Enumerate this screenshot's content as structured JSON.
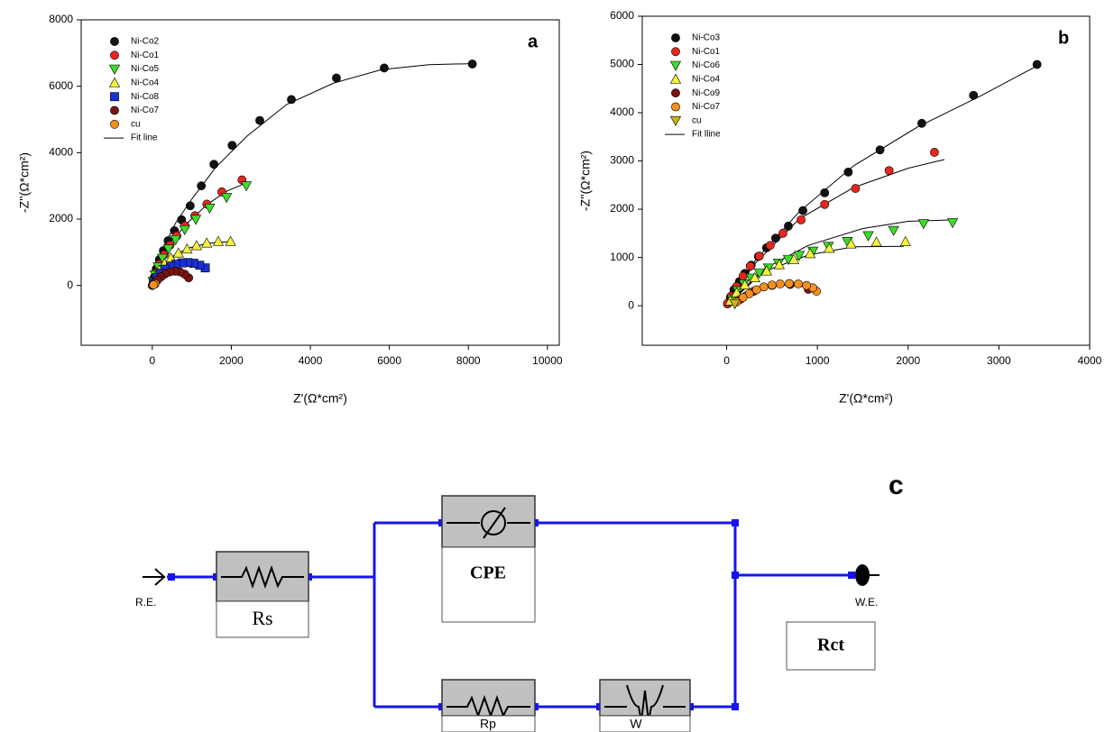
{
  "chart_data": [
    {
      "type": "scatter",
      "label": "a",
      "x_label": "Z'(Ω*cm²)",
      "y_label": "-Z''(Ω*cm²)",
      "xlim": [
        -1800,
        10300
      ],
      "ylim": [
        -1800,
        8000
      ],
      "xticks": [
        0,
        2000,
        4000,
        6000,
        8000,
        10000
      ],
      "yticks": [
        0,
        2000,
        4000,
        6000,
        8000
      ],
      "legend": "upper left",
      "series": [
        {
          "name": "Ni-Co2",
          "color": "#111111",
          "marker": "circle",
          "x": [
            8100,
            5870,
            4660,
            3520,
            2720,
            2020,
            1560,
            1240,
            960,
            740,
            560,
            400,
            280,
            180,
            100,
            50,
            20,
            0
          ],
          "values": [
            6670,
            6550,
            6250,
            5600,
            4970,
            4220,
            3650,
            3000,
            2400,
            1980,
            1650,
            1350,
            1050,
            780,
            500,
            250,
            80,
            0
          ]
        },
        {
          "name": "Ni-Co1",
          "color": "#e8261e",
          "marker": "circle",
          "x": [
            2270,
            1760,
            1380,
            1080,
            830,
            620,
            450,
            300,
            180,
            90,
            30
          ],
          "values": [
            3180,
            2820,
            2450,
            2100,
            1800,
            1500,
            1220,
            930,
            650,
            380,
            150
          ]
        },
        {
          "name": "Ni-Co5",
          "color": "#3ddc2a",
          "marker": "triangle-down",
          "x": [
            2380,
            1880,
            1450,
            1100,
            820,
            590,
            410,
            260,
            150,
            70,
            20
          ],
          "values": [
            3000,
            2650,
            2330,
            1990,
            1680,
            1380,
            1100,
            820,
            560,
            320,
            120
          ]
        },
        {
          "name": "Ni-Co4",
          "color": "#f4f23a",
          "marker": "triangle-up",
          "x": [
            1980,
            1670,
            1380,
            1120,
            880,
            660,
            470,
            310,
            180,
            80,
            20
          ],
          "values": [
            1330,
            1330,
            1280,
            1200,
            1100,
            980,
            830,
            660,
            460,
            260,
            90
          ]
        },
        {
          "name": "Ni-Co8",
          "color": "#1930d8",
          "marker": "square",
          "x": [
            1340,
            1200,
            1050,
            900,
            750,
            600,
            460,
            330,
            210,
            110,
            40
          ],
          "values": [
            530,
            610,
            670,
            690,
            680,
            640,
            580,
            490,
            370,
            230,
            90
          ]
        },
        {
          "name": "Ni-Co7",
          "color": "#7a1414",
          "marker": "circle",
          "x": [
            920,
            820,
            700,
            580,
            450,
            330,
            220,
            130,
            50
          ],
          "values": [
            230,
            340,
            410,
            430,
            410,
            350,
            260,
            160,
            60
          ]
        },
        {
          "name": "cu",
          "color": "#f4901e",
          "marker": "circle",
          "x": [
            70,
            30
          ],
          "values": [
            50,
            20
          ]
        },
        {
          "name": "Fit line",
          "color": "#000000",
          "marker": "line",
          "x": [
            0,
            100,
            300,
            600,
            1000,
            1600,
            2400,
            3400,
            4600,
            5800,
            7000,
            8100,
            null,
            0,
            200,
            500,
            900,
            1400,
            1900,
            2300,
            null,
            0,
            200,
            500,
            900,
            1400,
            2000
          ],
          "values": [
            0,
            600,
            1200,
            1900,
            2600,
            3550,
            4500,
            5450,
            6100,
            6500,
            6650,
            6680,
            null,
            0,
            700,
            1350,
            1900,
            2450,
            2850,
            3050,
            null,
            0,
            480,
            870,
            1120,
            1270,
            1330
          ]
        }
      ]
    },
    {
      "type": "scatter",
      "label": "b",
      "x_label": "Z'(Ω*cm²)",
      "y_label": "-Z''(Ω*cm²)",
      "xlim": [
        -930,
        4000
      ],
      "ylim": [
        -820,
        6000
      ],
      "xticks": [
        0,
        1000,
        2000,
        3000,
        4000
      ],
      "yticks": [
        0,
        1000,
        2000,
        3000,
        4000,
        5000,
        6000
      ],
      "legend": "upper left",
      "series": [
        {
          "name": "Ni-Co3",
          "color": "#111111",
          "marker": "circle",
          "x": [
            3420,
            2720,
            2150,
            1690,
            1340,
            1080,
            840,
            680,
            540,
            440,
            350,
            270,
            200,
            140,
            80,
            40,
            10
          ],
          "values": [
            5000,
            4360,
            3780,
            3230,
            2770,
            2340,
            1970,
            1650,
            1400,
            1200,
            1020,
            840,
            670,
            500,
            330,
            170,
            40
          ]
        },
        {
          "name": "Ni-Co1",
          "color": "#e8261e",
          "marker": "circle",
          "x": [
            2290,
            1790,
            1420,
            1080,
            820,
            620,
            480,
            360,
            260,
            180,
            110,
            50,
            10
          ],
          "values": [
            3180,
            2800,
            2430,
            2100,
            1780,
            1500,
            1250,
            1030,
            820,
            610,
            400,
            200,
            50
          ]
        },
        {
          "name": "Ni-Co6",
          "color": "#3ddc2a",
          "marker": "triangle-down",
          "x": [
            2490,
            2170,
            1840,
            1560,
            1330,
            1120,
            950,
            800,
            680,
            570,
            460,
            360,
            270,
            190,
            120,
            60
          ],
          "values": [
            1720,
            1700,
            1560,
            1450,
            1330,
            1230,
            1130,
            1040,
            960,
            880,
            780,
            680,
            570,
            450,
            310,
            140
          ]
        },
        {
          "name": "Ni-Co4",
          "color": "#f4f23a",
          "marker": "triangle-up",
          "x": [
            1970,
            1650,
            1370,
            1130,
            920,
            740,
            580,
            440,
            310,
            200,
            110,
            40
          ],
          "values": [
            1330,
            1320,
            1280,
            1190,
            1080,
            960,
            850,
            720,
            580,
            430,
            270,
            100
          ]
        },
        {
          "name": "Ni-Co9",
          "color": "#7a1414",
          "marker": "circle",
          "x": [
            900,
            700,
            500,
            300,
            150
          ],
          "values": [
            340,
            440,
            420,
            300,
            130
          ]
        },
        {
          "name": "Ni-Co7",
          "color": "#f4901e",
          "marker": "circle",
          "x": [
            990,
            950,
            880,
            790,
            690,
            590,
            500,
            410,
            330,
            250,
            180,
            110
          ],
          "values": [
            300,
            370,
            420,
            450,
            460,
            450,
            430,
            390,
            330,
            250,
            170,
            80
          ]
        },
        {
          "name": "cu",
          "color": "#c9b21c",
          "marker": "triangle-down",
          "x": [
            90
          ],
          "values": [
            40
          ]
        },
        {
          "name": "Fit lline",
          "color": "#000000",
          "marker": "line",
          "x": [
            0,
            300,
            800,
            1400,
            2100,
            2800,
            3400,
            null,
            0,
            300,
            800,
            1400,
            2000,
            2400,
            null,
            0,
            400,
            900,
            1500,
            2000,
            2500,
            null,
            0,
            400,
            900,
            1400,
            1950,
            null,
            0,
            200,
            500,
            800,
            1000
          ],
          "values": [
            0,
            900,
            1950,
            2900,
            3700,
            4350,
            4950,
            null,
            0,
            850,
            1800,
            2450,
            2850,
            3030,
            null,
            0,
            750,
            1250,
            1600,
            1750,
            1780,
            null,
            0,
            700,
            1050,
            1220,
            1230,
            null,
            0,
            280,
            430,
            420,
            330
          ]
        }
      ]
    }
  ],
  "circuit": {
    "panel_label": "c",
    "input": "R.E.",
    "output": "W.E.",
    "rs": "Rs",
    "cpe": "CPE",
    "rp": "Rp",
    "w": "W",
    "rct": "Rct"
  }
}
